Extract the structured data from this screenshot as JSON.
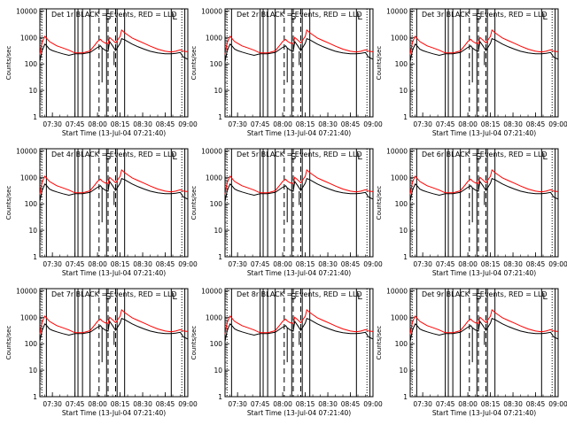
{
  "chart_data": [
    {
      "type": "line",
      "title": "Det 1r BLACK = Events, RED = LLD",
      "xlabel": "Start Time (13-Jul-04 07:21:40)",
      "ylabel": "Counts/sec"
    },
    {
      "type": "line",
      "title": "Det 2r BLACK = Events, RED = LLD",
      "xlabel": "Start Time (13-Jul-04 07:21:40)",
      "ylabel": "Counts/sec"
    },
    {
      "type": "line",
      "title": "Det 3r BLACK = Events, RED = LLD",
      "xlabel": "Start Time (13-Jul-04 07:21:40)",
      "ylabel": "Counts/sec"
    },
    {
      "type": "line",
      "title": "Det 4r BLACK = Events, RED = LLD",
      "xlabel": "Start Time (13-Jul-04 07:21:40)",
      "ylabel": "Counts/sec"
    },
    {
      "type": "line",
      "title": "Det 5r BLACK = Events, RED = LLD",
      "xlabel": "Start Time (13-Jul-04 07:21:40)",
      "ylabel": "Counts/sec"
    },
    {
      "type": "line",
      "title": "Det 6r BLACK = Events, RED = LLD",
      "xlabel": "Start Time (13-Jul-04 07:21:40)",
      "ylabel": "Counts/sec"
    },
    {
      "type": "line",
      "title": "Det 7r BLACK = Events, RED = LLD",
      "xlabel": "Start Time (13-Jul-04 07:21:40)",
      "ylabel": "Counts/sec"
    },
    {
      "type": "line",
      "title": "Det 8r BLACK = Events, RED = LLD",
      "xlabel": "Start Time (13-Jul-04 07:21:40)",
      "ylabel": "Counts/sec"
    },
    {
      "type": "line",
      "title": "Det 9r BLACK = Events, RED = LLD",
      "xlabel": "Start Time (13-Jul-04 07:21:40)",
      "ylabel": "Counts/sec"
    }
  ],
  "shared": {
    "x_range": [
      "07:21:40",
      "09:00"
    ],
    "x_ticks": [
      "07:30",
      "07:45",
      "08:00",
      "08:15",
      "08:30",
      "08:45",
      "09:00"
    ],
    "y_scale": "log",
    "y_range": [
      1,
      12000
    ],
    "y_ticks": [
      "1",
      "10",
      "100",
      "1000",
      "10000"
    ],
    "region_labels": [
      "S",
      "L"
    ],
    "solid_markers": [
      "07:26",
      "07:45",
      "07:47",
      "07:50",
      "07:55",
      "08:06",
      "08:13",
      "08:18",
      "08:49",
      "08:58"
    ],
    "dashed_markers": [
      "08:01",
      "08:07",
      "08:12"
    ],
    "dotted_markers": [
      "07:23",
      "08:56"
    ],
    "colors": {
      "events": "#000000",
      "lld": "#ff0000"
    },
    "series_points": [
      {
        "t": "07:21:40",
        "events": 120,
        "lld": 230
      },
      {
        "t": "07:23",
        "events": 300,
        "lld": 600
      },
      {
        "t": "07:24",
        "events": 420,
        "lld": 850
      },
      {
        "t": "07:25",
        "events": 560,
        "lld": 1100
      },
      {
        "t": "07:26",
        "events": 500,
        "lld": 950
      },
      {
        "t": "07:28",
        "events": 360,
        "lld": 700
      },
      {
        "t": "07:30",
        "events": 320,
        "lld": 600
      },
      {
        "t": "07:33",
        "events": 280,
        "lld": 480
      },
      {
        "t": "07:37",
        "events": 240,
        "lld": 400
      },
      {
        "t": "07:41",
        "events": 210,
        "lld": 330
      },
      {
        "t": "07:45",
        "events": 240,
        "lld": 260
      },
      {
        "t": "07:50",
        "events": 240,
        "lld": 260
      },
      {
        "t": "07:55",
        "events": 270,
        "lld": 310
      },
      {
        "t": "07:58",
        "events": 350,
        "lld": 500
      },
      {
        "t": "08:00",
        "events": 420,
        "lld": 700
      },
      {
        "t": "08:02",
        "events": 480,
        "lld": 850
      },
      {
        "t": "08:03",
        "events": 400,
        "lld": 720
      },
      {
        "t": "08:05",
        "events": 330,
        "lld": 620
      },
      {
        "t": "08:07",
        "events": 300,
        "lld": 580
      },
      {
        "t": "08:08",
        "events": 700,
        "lld": 1000
      },
      {
        "t": "08:10",
        "events": 480,
        "lld": 800
      },
      {
        "t": "08:12",
        "events": 320,
        "lld": 620
      },
      {
        "t": "08:15",
        "events": 600,
        "lld": 1100
      },
      {
        "t": "08:16",
        "events": 900,
        "lld": 1900
      },
      {
        "t": "08:18",
        "events": 820,
        "lld": 1500
      },
      {
        "t": "08:20",
        "events": 700,
        "lld": 1250
      },
      {
        "t": "08:23",
        "events": 560,
        "lld": 950
      },
      {
        "t": "08:27",
        "events": 440,
        "lld": 750
      },
      {
        "t": "08:31",
        "events": 360,
        "lld": 600
      },
      {
        "t": "08:35",
        "events": 300,
        "lld": 470
      },
      {
        "t": "08:40",
        "events": 260,
        "lld": 360
      },
      {
        "t": "08:45",
        "events": 240,
        "lld": 300
      },
      {
        "t": "08:49",
        "events": 240,
        "lld": 280
      },
      {
        "t": "08:52",
        "events": 250,
        "lld": 300
      },
      {
        "t": "08:55",
        "events": 270,
        "lld": 340
      },
      {
        "t": "08:57",
        "events": 180,
        "lld": 300
      },
      {
        "t": "09:00",
        "events": 150,
        "lld": 290
      }
    ],
    "dips": [
      {
        "t": "08:03",
        "events": 20
      },
      {
        "t": "08:11",
        "events": 90
      }
    ]
  }
}
